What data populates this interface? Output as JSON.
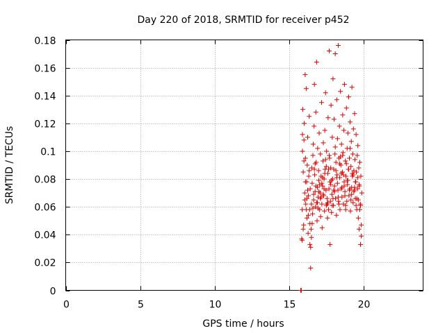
{
  "chart_data": {
    "type": "scatter",
    "title": "Day 220 of 2018, SRMTID for receiver p452",
    "xlabel": "GPS time / hours",
    "ylabel": "SRMTID / TECUs",
    "xlim": [
      0,
      24
    ],
    "ylim": [
      0,
      0.18
    ],
    "xticks": [
      0,
      5,
      10,
      15,
      20
    ],
    "xtick_labels": [
      "0",
      "5",
      "10",
      "15",
      "20"
    ],
    "yticks": [
      0,
      0.02,
      0.04,
      0.06,
      0.08,
      0.1,
      0.12,
      0.14,
      0.16,
      0.18
    ],
    "ytick_labels": [
      "0",
      "0.02",
      "0.04",
      "0.06",
      "0.08",
      "0.1",
      "0.12",
      "0.14",
      "0.16",
      "0.18"
    ],
    "grid": true,
    "marker": "+",
    "color": "#dd0000",
    "series": [
      {
        "name": "SRMTID",
        "x": [
          15.78,
          15.82,
          15.85,
          15.88,
          15.9,
          15.92,
          15.95,
          15.98,
          16.0,
          16.02,
          16.05,
          16.08,
          16.1,
          16.12,
          16.15,
          16.18,
          16.2,
          16.22,
          16.25,
          16.28,
          16.3,
          16.32,
          16.35,
          16.38,
          16.4,
          16.42,
          16.45,
          16.48,
          16.5,
          16.52,
          16.55,
          16.58,
          16.6,
          16.62,
          16.65,
          16.68,
          16.7,
          16.72,
          16.75,
          16.78,
          16.8,
          16.82,
          16.85,
          16.88,
          16.9,
          16.92,
          16.95,
          16.98,
          17.0,
          17.02,
          17.05,
          17.08,
          17.1,
          17.12,
          17.15,
          17.18,
          17.2,
          17.22,
          17.25,
          17.28,
          17.3,
          17.32,
          17.35,
          17.38,
          17.4,
          17.42,
          17.45,
          17.48,
          17.5,
          17.52,
          17.55,
          17.58,
          17.6,
          17.62,
          17.65,
          17.68,
          17.7,
          17.72,
          17.75,
          17.78,
          17.8,
          17.82,
          17.85,
          17.88,
          17.9,
          17.92,
          17.95,
          17.98,
          18.0,
          18.02,
          18.05,
          18.08,
          18.1,
          18.12,
          18.15,
          18.18,
          18.2,
          18.22,
          18.25,
          18.28,
          18.3,
          18.32,
          18.35,
          18.38,
          18.4,
          18.42,
          18.45,
          18.48,
          18.5,
          18.52,
          18.55,
          18.58,
          18.6,
          18.62,
          18.65,
          18.68,
          18.7,
          18.72,
          18.75,
          18.78,
          18.8,
          18.82,
          18.85,
          18.88,
          18.9,
          18.92,
          18.95,
          18.98,
          19.0,
          19.02,
          19.05,
          19.08,
          19.1,
          19.12,
          19.15,
          19.18,
          19.2,
          19.22,
          19.25,
          19.28,
          19.3,
          19.32,
          19.35,
          19.38,
          19.4,
          19.42,
          19.45,
          19.48,
          19.5,
          19.52,
          19.55,
          19.58,
          19.6,
          19.62,
          19.65,
          19.68,
          19.7,
          19.72,
          19.75,
          19.78,
          19.8,
          19.82,
          19.85,
          19.88,
          15.88,
          15.95,
          16.05,
          16.15,
          16.25,
          16.35,
          16.45,
          16.55,
          16.65,
          16.75,
          16.85,
          16.95,
          17.05,
          17.15,
          17.25,
          17.35,
          17.45,
          17.55,
          17.65,
          17.75,
          17.85,
          17.95,
          18.05,
          18.15,
          18.25,
          18.35,
          18.45,
          18.55,
          18.65,
          18.75,
          18.85,
          18.95,
          19.05,
          19.15,
          19.25,
          19.35,
          19.45,
          19.55,
          19.65,
          19.75,
          19.85,
          15.9,
          16.0,
          16.1,
          16.2,
          16.3,
          16.4,
          16.5,
          16.6,
          16.7,
          16.8,
          16.9,
          17.0,
          17.1,
          17.2,
          17.3,
          17.4,
          17.5,
          17.6,
          17.7,
          17.8,
          17.9,
          18.0,
          18.1,
          18.2,
          18.3,
          18.4,
          18.5,
          18.6,
          18.7,
          18.8,
          18.9,
          19.0,
          19.1,
          19.2,
          19.3,
          19.4,
          19.5,
          19.6,
          19.7,
          19.8
        ],
        "y": [
          0.0,
          0.0,
          0.037,
          0.058,
          0.1,
          0.13,
          0.085,
          0.047,
          0.108,
          0.12,
          0.07,
          0.155,
          0.095,
          0.062,
          0.145,
          0.078,
          0.052,
          0.09,
          0.11,
          0.041,
          0.068,
          0.082,
          0.125,
          0.058,
          0.033,
          0.073,
          0.016,
          0.044,
          0.062,
          0.088,
          0.077,
          0.055,
          0.097,
          0.105,
          0.065,
          0.118,
          0.148,
          0.083,
          0.071,
          0.06,
          0.128,
          0.092,
          0.164,
          0.05,
          0.074,
          0.102,
          0.067,
          0.086,
          0.079,
          0.113,
          0.058,
          0.07,
          0.098,
          0.053,
          0.082,
          0.135,
          0.062,
          0.045,
          0.075,
          0.093,
          0.106,
          0.068,
          0.08,
          0.057,
          0.115,
          0.087,
          0.142,
          0.072,
          0.061,
          0.1,
          0.066,
          0.052,
          0.084,
          0.124,
          0.058,
          0.073,
          0.172,
          0.095,
          0.078,
          0.064,
          0.088,
          0.133,
          0.056,
          0.069,
          0.11,
          0.08,
          0.152,
          0.061,
          0.087,
          0.123,
          0.075,
          0.098,
          0.17,
          0.066,
          0.092,
          0.054,
          0.137,
          0.083,
          0.109,
          0.072,
          0.176,
          0.064,
          0.095,
          0.118,
          0.081,
          0.058,
          0.143,
          0.09,
          0.073,
          0.105,
          0.067,
          0.085,
          0.126,
          0.099,
          0.062,
          0.115,
          0.078,
          0.148,
          0.071,
          0.093,
          0.058,
          0.082,
          0.131,
          0.064,
          0.102,
          0.076,
          0.113,
          0.087,
          0.139,
          0.068,
          0.095,
          0.073,
          0.121,
          0.057,
          0.089,
          0.107,
          0.074,
          0.146,
          0.082,
          0.098,
          0.063,
          0.116,
          0.086,
          0.072,
          0.127,
          0.094,
          0.066,
          0.078,
          0.112,
          0.085,
          0.058,
          0.097,
          0.073,
          0.104,
          0.065,
          0.088,
          0.044,
          0.075,
          0.092,
          0.062,
          0.033,
          0.082,
          0.047,
          0.07,
          0.036,
          0.044,
          0.065,
          0.058,
          0.072,
          0.086,
          0.031,
          0.048,
          0.069,
          0.091,
          0.063,
          0.059,
          0.076,
          0.067,
          0.081,
          0.073,
          0.094,
          0.062,
          0.087,
          0.033,
          0.079,
          0.066,
          0.071,
          0.086,
          0.077,
          0.062,
          0.096,
          0.074,
          0.083,
          0.068,
          0.091,
          0.079,
          0.072,
          0.065,
          0.084,
          0.071,
          0.078,
          0.066,
          0.052,
          0.058,
          0.039,
          0.112,
          0.093,
          0.078,
          0.066,
          0.054,
          0.048,
          0.038,
          0.059,
          0.087,
          0.075,
          0.063,
          0.071,
          0.066,
          0.077,
          0.069,
          0.084,
          0.089,
          0.063,
          0.097,
          0.076,
          0.061,
          0.072,
          0.103,
          0.081,
          0.067,
          0.091,
          0.084,
          0.097,
          0.075,
          0.061,
          0.079,
          0.087,
          0.102,
          0.069,
          0.083,
          0.074,
          0.061,
          0.081,
          0.076,
          0.061
        ]
      }
    ]
  }
}
